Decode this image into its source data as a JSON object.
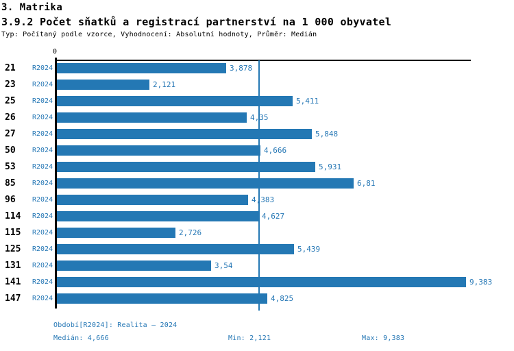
{
  "header": {
    "section_title": "3. Matrika",
    "chart_title": "3.9.2 Počet sňatků a registrací partnerství na 1 000 obyvatel",
    "subtitle": "Typ: Počítaný podle vzorce, Vyhodnocení: Absolutní hodnoty, Průměr: Medián"
  },
  "chart_data": {
    "type": "bar",
    "orientation": "horizontal",
    "title": "3.9.2 Počet sňatků a registrací partnerství na 1 000 obyvatel",
    "series_label": "R2024",
    "categories": [
      "21",
      "23",
      "25",
      "26",
      "27",
      "50",
      "53",
      "85",
      "96",
      "114",
      "115",
      "125",
      "131",
      "141",
      "147"
    ],
    "values": [
      3.878,
      2.121,
      5.411,
      4.35,
      5.848,
      4.666,
      5.931,
      6.81,
      4.383,
      4.627,
      2.726,
      5.439,
      3.54,
      9.383,
      4.825
    ],
    "value_labels": [
      "3,878",
      "2,121",
      "5,411",
      "4,35",
      "5,848",
      "4,666",
      "5,931",
      "6,81",
      "4,383",
      "4,627",
      "2,726",
      "5,439",
      "3,54",
      "9,383",
      "4,825"
    ],
    "origin_tick_label": "0",
    "median_value": 4.666,
    "xlim": [
      0,
      9.5
    ],
    "grid": false,
    "legend_position": "none",
    "bar_color": "#2478b4",
    "label_color": "#2577b5",
    "median_line_color": "#2478b4",
    "axis_color": "#000000"
  },
  "footer": {
    "period_label": "Období[R2024]: Realita – 2024",
    "median_label": "Medián: 4,666",
    "min_label": "Min: 2,121",
    "max_label": "Max: 9,383"
  }
}
